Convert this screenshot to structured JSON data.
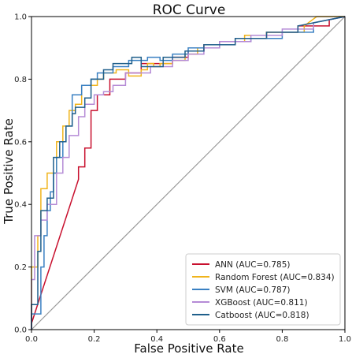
{
  "chart_data": {
    "type": "line",
    "title": "ROC Curve",
    "xlabel": "False Positive Rate",
    "ylabel": "True Positive Rate",
    "xlim": [
      0.0,
      1.0
    ],
    "ylim": [
      0.0,
      1.0
    ],
    "x_ticks": [
      "0.0",
      "0.2",
      "0.4",
      "0.6",
      "0.8",
      "1.0"
    ],
    "y_ticks": [
      "0.0",
      "0.2",
      "0.4",
      "0.6",
      "0.8",
      "1.0"
    ],
    "grid": false,
    "legend_position": "bottom-right",
    "diagonal": {
      "x": [
        0,
        1
      ],
      "y": [
        0,
        1
      ],
      "color": "#999999"
    },
    "series": [
      {
        "name": "ANN (AUC=0.785)",
        "color": "#c8102e",
        "x": [
          0.0,
          0.0,
          0.15,
          0.15,
          0.17,
          0.17,
          0.19,
          0.19,
          0.21,
          0.21,
          0.25,
          0.25,
          0.3,
          0.3,
          0.35,
          0.35,
          0.45,
          0.45,
          0.5,
          0.5,
          0.55,
          0.55,
          0.65,
          0.65,
          0.75,
          0.75,
          0.85,
          0.85,
          0.95,
          0.95,
          1.0
        ],
        "y": [
          0.0,
          0.02,
          0.48,
          0.52,
          0.52,
          0.58,
          0.58,
          0.7,
          0.7,
          0.75,
          0.75,
          0.8,
          0.8,
          0.82,
          0.82,
          0.85,
          0.85,
          0.87,
          0.87,
          0.89,
          0.89,
          0.91,
          0.91,
          0.93,
          0.93,
          0.95,
          0.95,
          0.97,
          0.97,
          0.99,
          1.0
        ]
      },
      {
        "name": "Random Forest (AUC=0.834)",
        "color": "#f0b41c",
        "x": [
          0.0,
          0.0,
          0.02,
          0.02,
          0.03,
          0.03,
          0.05,
          0.05,
          0.08,
          0.08,
          0.1,
          0.1,
          0.12,
          0.12,
          0.14,
          0.14,
          0.16,
          0.16,
          0.21,
          0.21,
          0.23,
          0.23,
          0.27,
          0.27,
          0.31,
          0.31,
          0.35,
          0.35,
          0.37,
          0.37,
          0.39,
          0.39,
          0.41,
          0.41,
          0.45,
          0.45,
          0.49,
          0.49,
          0.53,
          0.53,
          0.6,
          0.6,
          0.68,
          0.68,
          0.75,
          0.75,
          0.87,
          0.87,
          0.91,
          1.0
        ],
        "y": [
          0.0,
          0.2,
          0.2,
          0.3,
          0.3,
          0.45,
          0.45,
          0.5,
          0.5,
          0.6,
          0.6,
          0.65,
          0.65,
          0.7,
          0.7,
          0.72,
          0.72,
          0.78,
          0.78,
          0.8,
          0.8,
          0.82,
          0.82,
          0.83,
          0.83,
          0.81,
          0.81,
          0.83,
          0.83,
          0.85,
          0.85,
          0.84,
          0.84,
          0.85,
          0.85,
          0.86,
          0.86,
          0.88,
          0.88,
          0.9,
          0.9,
          0.92,
          0.92,
          0.94,
          0.94,
          0.95,
          0.95,
          0.97,
          1.0,
          1.0
        ]
      },
      {
        "name": "SVM (AUC=0.787)",
        "color": "#3a80c2",
        "x": [
          0.0,
          0.0,
          0.03,
          0.03,
          0.04,
          0.04,
          0.05,
          0.05,
          0.06,
          0.06,
          0.07,
          0.07,
          0.08,
          0.08,
          0.1,
          0.1,
          0.11,
          0.11,
          0.13,
          0.13,
          0.16,
          0.16,
          0.19,
          0.19,
          0.21,
          0.21,
          0.26,
          0.26,
          0.31,
          0.31,
          0.37,
          0.37,
          0.41,
          0.41,
          0.45,
          0.45,
          0.5,
          0.5,
          0.6,
          0.6,
          0.7,
          0.7,
          0.8,
          0.8,
          0.9,
          0.9,
          1.0
        ],
        "y": [
          0.0,
          0.05,
          0.05,
          0.2,
          0.2,
          0.3,
          0.3,
          0.38,
          0.38,
          0.44,
          0.44,
          0.5,
          0.5,
          0.55,
          0.55,
          0.6,
          0.6,
          0.65,
          0.65,
          0.75,
          0.75,
          0.78,
          0.78,
          0.8,
          0.8,
          0.82,
          0.82,
          0.84,
          0.84,
          0.86,
          0.86,
          0.87,
          0.87,
          0.86,
          0.86,
          0.88,
          0.88,
          0.9,
          0.9,
          0.92,
          0.92,
          0.93,
          0.93,
          0.95,
          0.95,
          0.98,
          1.0
        ]
      },
      {
        "name": "XGBoost (AUC=0.811)",
        "color": "#b58bd6",
        "x": [
          0.0,
          0.0,
          0.01,
          0.01,
          0.03,
          0.03,
          0.05,
          0.05,
          0.08,
          0.08,
          0.1,
          0.1,
          0.12,
          0.12,
          0.15,
          0.15,
          0.17,
          0.17,
          0.2,
          0.2,
          0.23,
          0.23,
          0.26,
          0.26,
          0.3,
          0.3,
          0.38,
          0.38,
          0.45,
          0.45,
          0.5,
          0.5,
          0.55,
          0.55,
          0.6,
          0.6,
          0.7,
          0.7,
          0.8,
          0.8,
          0.9,
          0.9,
          1.0
        ],
        "y": [
          0.0,
          0.16,
          0.16,
          0.3,
          0.3,
          0.35,
          0.35,
          0.4,
          0.4,
          0.5,
          0.5,
          0.55,
          0.55,
          0.62,
          0.62,
          0.68,
          0.68,
          0.72,
          0.72,
          0.75,
          0.75,
          0.76,
          0.76,
          0.78,
          0.78,
          0.82,
          0.82,
          0.84,
          0.84,
          0.86,
          0.86,
          0.88,
          0.88,
          0.9,
          0.9,
          0.92,
          0.92,
          0.94,
          0.94,
          0.96,
          0.96,
          0.98,
          1.0
        ]
      },
      {
        "name": "Catboost (AUC=0.818)",
        "color": "#1f5f8b",
        "x": [
          0.0,
          0.0,
          0.02,
          0.02,
          0.03,
          0.03,
          0.05,
          0.05,
          0.07,
          0.07,
          0.09,
          0.09,
          0.11,
          0.11,
          0.13,
          0.13,
          0.14,
          0.14,
          0.17,
          0.17,
          0.19,
          0.19,
          0.23,
          0.23,
          0.26,
          0.26,
          0.32,
          0.32,
          0.35,
          0.35,
          0.42,
          0.42,
          0.49,
          0.49,
          0.55,
          0.55,
          0.65,
          0.65,
          0.75,
          0.75,
          0.85,
          0.85,
          1.0
        ],
        "y": [
          0.0,
          0.08,
          0.08,
          0.25,
          0.25,
          0.38,
          0.38,
          0.42,
          0.42,
          0.55,
          0.55,
          0.6,
          0.6,
          0.65,
          0.65,
          0.69,
          0.69,
          0.71,
          0.71,
          0.74,
          0.74,
          0.8,
          0.8,
          0.83,
          0.83,
          0.85,
          0.85,
          0.87,
          0.87,
          0.84,
          0.84,
          0.87,
          0.87,
          0.89,
          0.89,
          0.91,
          0.91,
          0.93,
          0.93,
          0.95,
          0.95,
          0.97,
          1.0
        ]
      }
    ]
  }
}
